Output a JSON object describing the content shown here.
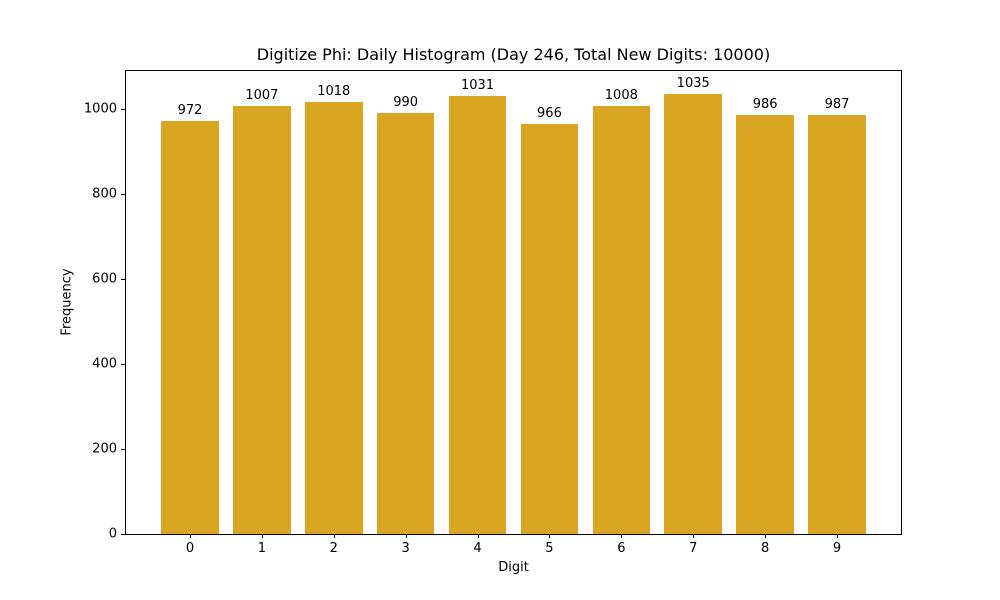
{
  "chart_data": {
    "type": "bar",
    "title": "Digitize Phi: Daily Histogram (Day 246, Total New Digits: 10000)",
    "categories": [
      "0",
      "1",
      "2",
      "3",
      "4",
      "5",
      "6",
      "7",
      "8",
      "9"
    ],
    "values": [
      972,
      1007,
      1018,
      990,
      1031,
      966,
      1008,
      1035,
      986,
      987
    ],
    "value_labels": [
      "972",
      "1007",
      "1018",
      "990",
      "1031",
      "966",
      "1008",
      "1035",
      "986",
      "987"
    ],
    "xlabel": "Digit",
    "ylabel": "Frequency",
    "ylim": [
      0,
      1090
    ],
    "yticks": [
      0,
      200,
      400,
      600,
      800,
      1000
    ],
    "bar_color": "#DAA520",
    "bar_width_fraction": 0.8,
    "grid": false,
    "legend_position": "none",
    "background_color": "#ffffff",
    "spine_color": "#000000"
  }
}
